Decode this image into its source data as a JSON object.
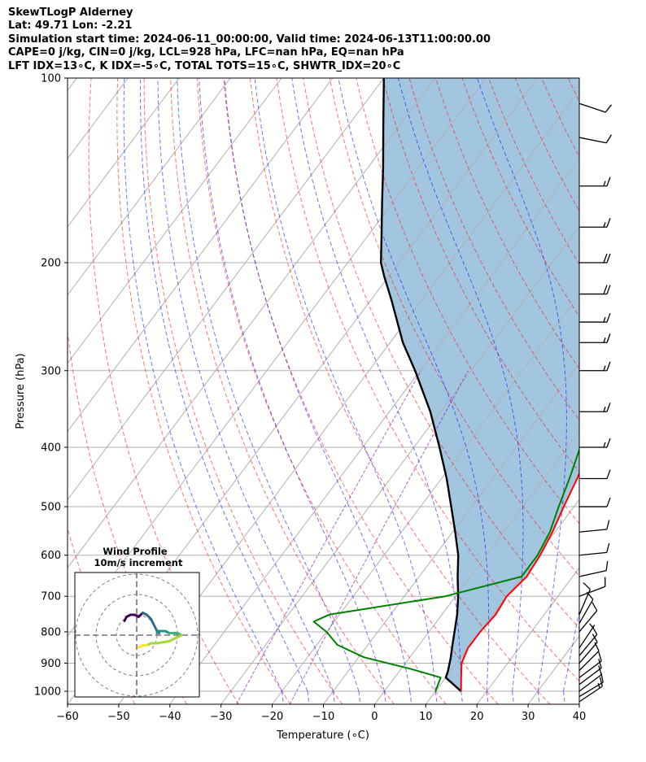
{
  "header": {
    "line1": "SkewTLogP Alderney",
    "line2": "Lat: 49.71   Lon: -2.21",
    "line3": "Simulation start time: 2024-06-11_00:00:00, Valid time: 2024-06-13T11:00:00.00",
    "line4": "CAPE=0 j/kg, CIN=0 j/kg, LCL=928 hPa, LFC=nan hPa, EQ=nan hPa",
    "line5": "LFT IDX=13∘C, K IDX=-5∘C, TOTAL TOTS=15∘C, SHWTR_IDX=20∘C"
  },
  "chart_data": {
    "type": "skewt",
    "xlabel": "Temperature (∘C)",
    "ylabel": "Pressure (hPa)",
    "xlim": [
      -60,
      40
    ],
    "ylim": [
      1050,
      100
    ],
    "x_ticks": [
      "−60",
      "−50",
      "−40",
      "−30",
      "−20",
      "−10",
      "0",
      "10",
      "20",
      "30",
      "40"
    ],
    "x_tick_values": [
      -60,
      -50,
      -40,
      -30,
      -20,
      -10,
      0,
      10,
      20,
      30,
      40
    ],
    "y_ticks": [
      "100",
      "200",
      "300",
      "400",
      "500",
      "600",
      "700",
      "800",
      "900",
      "1000"
    ],
    "y_tick_values": [
      100,
      200,
      300,
      400,
      500,
      600,
      700,
      800,
      900,
      1000
    ],
    "grid": true,
    "shaded_region": {
      "between": [
        "temperature",
        "parcel"
      ],
      "color": "#a3c6e0"
    },
    "series": [
      {
        "id": "temperature",
        "color": "#ff0000",
        "points": [
          [
            15,
            1000
          ],
          [
            13,
            950
          ],
          [
            11,
            900
          ],
          [
            10,
            850
          ],
          [
            10,
            800
          ],
          [
            10.5,
            750
          ],
          [
            10,
            700
          ],
          [
            11,
            650
          ],
          [
            10.5,
            600
          ],
          [
            9.5,
            550
          ],
          [
            8,
            500
          ],
          [
            6.5,
            450
          ],
          [
            4.5,
            400
          ],
          [
            1.5,
            350
          ],
          [
            -2,
            300
          ],
          [
            -5.5,
            270
          ],
          [
            -11,
            230
          ],
          [
            -14.5,
            210
          ],
          [
            -16.5,
            200
          ],
          [
            -16,
            190
          ],
          [
            -14,
            180
          ],
          [
            -12.5,
            170
          ],
          [
            -9.5,
            160
          ],
          [
            -4.5,
            150
          ],
          [
            -1.5,
            140
          ],
          [
            1,
            130
          ],
          [
            2.5,
            120
          ],
          [
            3,
            110
          ],
          [
            3.5,
            100
          ]
        ]
      },
      {
        "id": "dewpoint",
        "color": "#008000",
        "points": [
          [
            10,
            1000
          ],
          [
            9,
            950
          ],
          [
            2,
            920
          ],
          [
            -9,
            880
          ],
          [
            -16,
            840
          ],
          [
            -20,
            800
          ],
          [
            -24,
            770
          ],
          [
            -22,
            750
          ],
          [
            -2,
            700
          ],
          [
            10,
            650
          ],
          [
            10,
            600
          ],
          [
            9,
            550
          ],
          [
            7,
            500
          ],
          [
            5,
            450
          ],
          [
            2.5,
            400
          ],
          [
            -1,
            350
          ],
          [
            -5,
            300
          ],
          [
            -8,
            270
          ],
          [
            -14,
            230
          ],
          [
            -16.5,
            210
          ],
          [
            -17.5,
            200
          ],
          [
            -16,
            190
          ],
          [
            -14,
            180
          ],
          [
            -14,
            170
          ],
          [
            -17,
            160
          ],
          [
            -21,
            150
          ],
          [
            -23,
            140
          ],
          [
            -18,
            130
          ],
          [
            -14.5,
            120
          ],
          [
            -12,
            110
          ],
          [
            -9.5,
            100
          ]
        ]
      },
      {
        "id": "parcel",
        "color": "#000000",
        "points": [
          [
            15,
            1000
          ],
          [
            10,
            950
          ],
          [
            9.5,
            928
          ],
          [
            8,
            880
          ],
          [
            6.5,
            840
          ],
          [
            5,
            800
          ],
          [
            3,
            750
          ],
          [
            0.5,
            700
          ],
          [
            -2.5,
            650
          ],
          [
            -5.5,
            600
          ],
          [
            -9.5,
            550
          ],
          [
            -14,
            500
          ],
          [
            -19,
            450
          ],
          [
            -25,
            400
          ],
          [
            -32,
            350
          ],
          [
            -41,
            300
          ],
          [
            -47.5,
            270
          ],
          [
            -56,
            230
          ],
          [
            -61,
            210
          ],
          [
            -63.5,
            200
          ],
          [
            -67.5,
            180
          ],
          [
            -72,
            160
          ],
          [
            -77,
            140
          ],
          [
            -83,
            120
          ],
          [
            -90,
            100
          ]
        ]
      }
    ],
    "wind_barbs": [
      {
        "p": 1040,
        "u": -12,
        "v": -8
      },
      {
        "p": 1020,
        "u": -10,
        "v": -6
      },
      {
        "p": 1000,
        "u": -8,
        "v": -6
      },
      {
        "p": 975,
        "u": -8,
        "v": -6
      },
      {
        "p": 950,
        "u": -8,
        "v": -6
      },
      {
        "p": 925,
        "u": -7,
        "v": -7
      },
      {
        "p": 900,
        "u": -6,
        "v": -7
      },
      {
        "p": 875,
        "u": -5,
        "v": -6
      },
      {
        "p": 850,
        "u": -4,
        "v": -6
      },
      {
        "p": 800,
        "u": -5,
        "v": -6
      },
      {
        "p": 775,
        "u": -4,
        "v": -7
      },
      {
        "p": 750,
        "u": -3,
        "v": -7
      },
      {
        "p": 700,
        "u": -8,
        "v": -3
      },
      {
        "p": 650,
        "u": -9,
        "v": -2
      },
      {
        "p": 600,
        "u": -10,
        "v": -1
      },
      {
        "p": 550,
        "u": -10,
        "v": -1
      },
      {
        "p": 500,
        "u": -11,
        "v": 0
      },
      {
        "p": 450,
        "u": -12,
        "v": 0
      },
      {
        "p": 400,
        "u": -13,
        "v": 0
      },
      {
        "p": 350,
        "u": -14,
        "v": 0
      },
      {
        "p": 300,
        "u": -15,
        "v": 0
      },
      {
        "p": 270,
        "u": -16,
        "v": 0
      },
      {
        "p": 250,
        "u": -17,
        "v": 0
      },
      {
        "p": 225,
        "u": -18,
        "v": 0
      },
      {
        "p": 200,
        "u": -20,
        "v": 0
      },
      {
        "p": 175,
        "u": -17,
        "v": 0
      },
      {
        "p": 150,
        "u": -15,
        "v": 0
      },
      {
        "p": 125,
        "u": -10,
        "v": 2
      },
      {
        "p": 110,
        "u": -9,
        "v": 3
      }
    ],
    "hodograph": {
      "title_line1": "Wind Profile",
      "title_line2": "10m/s increment",
      "ring_increment": 10,
      "segments": [
        {
          "color": "#440154",
          "points": [
            [
              -6,
              7
            ],
            [
              -5,
              9
            ],
            [
              -3,
              10
            ],
            [
              -1,
              10
            ],
            [
              1,
              9
            ],
            [
              2,
              10
            ],
            [
              3,
              11
            ]
          ]
        },
        {
          "color": "#31688e",
          "points": [
            [
              3,
              11
            ],
            [
              5,
              10
            ],
            [
              7,
              8
            ],
            [
              8,
              6
            ],
            [
              9,
              4
            ],
            [
              10,
              2
            ],
            [
              11,
              1
            ]
          ]
        },
        {
          "color": "#21918c",
          "points": [
            [
              10,
              1
            ],
            [
              10,
              2
            ],
            [
              12,
              2
            ],
            [
              14,
              2
            ],
            [
              16,
              1
            ]
          ]
        },
        {
          "color": "#35b779",
          "points": [
            [
              16,
              1
            ],
            [
              18,
              1
            ],
            [
              20,
              1
            ],
            [
              22,
              0
            ]
          ]
        },
        {
          "color": "#a0da39",
          "points": [
            [
              22,
              0
            ],
            [
              20,
              -1
            ],
            [
              16,
              -3
            ],
            [
              10,
              -4
            ],
            [
              7,
              -4
            ],
            [
              5,
              -5
            ],
            [
              3,
              -5
            ]
          ]
        },
        {
          "color": "#fde725",
          "points": [
            [
              5,
              -5
            ],
            [
              3,
              -5
            ],
            [
              1,
              -6
            ]
          ]
        }
      ]
    }
  }
}
